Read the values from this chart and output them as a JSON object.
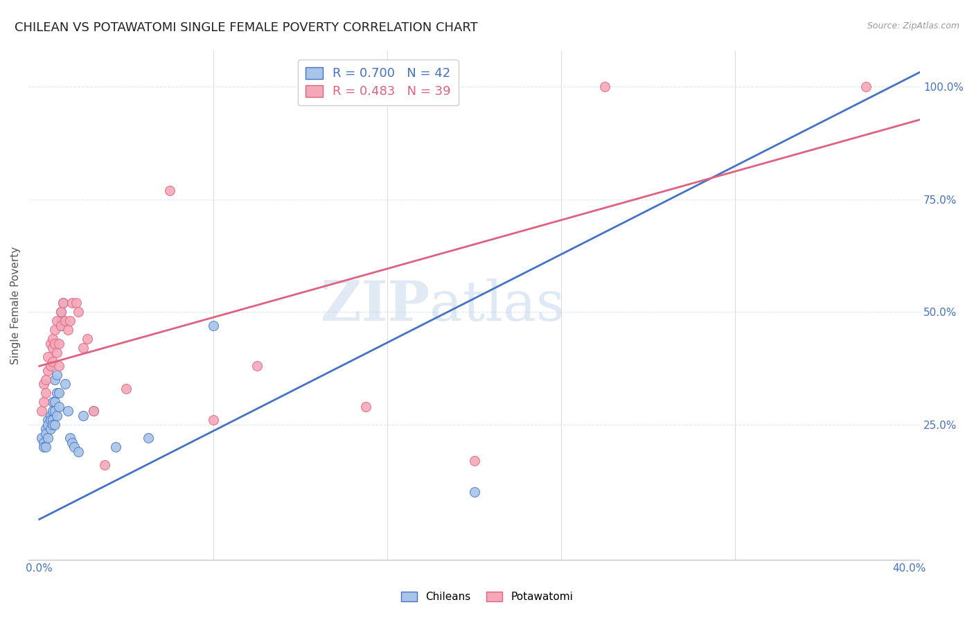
{
  "title": "CHILEAN VS POTAWATOMI SINGLE FEMALE POVERTY CORRELATION CHART",
  "source": "Source: ZipAtlas.com",
  "ylabel": "Single Female Poverty",
  "watermark": "ZIPatlas",
  "chilean_R": 0.7,
  "chilean_N": 42,
  "potawatomi_R": 0.483,
  "potawatomi_N": 39,
  "chilean_color": "#a8c4e8",
  "potawatomi_color": "#f5a8b8",
  "chilean_line_color": "#4472c4",
  "potawatomi_line_color": "#e06080",
  "xlim": [
    -0.005,
    0.405
  ],
  "ylim": [
    -0.05,
    1.08
  ],
  "x_ticks": [
    0.0,
    0.08,
    0.16,
    0.24,
    0.32,
    0.4
  ],
  "y_ticks_right": [
    0.25,
    0.5,
    0.75,
    1.0
  ],
  "y_tick_labels_right": [
    "25.0%",
    "50.0%",
    "75.0%",
    "100.0%"
  ],
  "chilean_line": [
    0.0,
    0.04,
    0.4,
    1.02
  ],
  "potawatomi_line": [
    0.0,
    0.38,
    0.4,
    0.92
  ],
  "chilean_x": [
    0.001,
    0.002,
    0.002,
    0.003,
    0.003,
    0.003,
    0.004,
    0.004,
    0.004,
    0.005,
    0.005,
    0.005,
    0.006,
    0.006,
    0.006,
    0.006,
    0.007,
    0.007,
    0.007,
    0.007,
    0.008,
    0.008,
    0.008,
    0.009,
    0.009,
    0.01,
    0.01,
    0.01,
    0.011,
    0.011,
    0.012,
    0.013,
    0.014,
    0.015,
    0.016,
    0.018,
    0.02,
    0.025,
    0.035,
    0.05,
    0.08,
    0.2
  ],
  "chilean_y": [
    0.22,
    0.21,
    0.2,
    0.24,
    0.23,
    0.2,
    0.26,
    0.25,
    0.22,
    0.27,
    0.26,
    0.24,
    0.3,
    0.28,
    0.26,
    0.25,
    0.35,
    0.3,
    0.28,
    0.25,
    0.36,
    0.32,
    0.27,
    0.32,
    0.29,
    0.5,
    0.48,
    0.47,
    0.52,
    0.48,
    0.34,
    0.28,
    0.22,
    0.21,
    0.2,
    0.19,
    0.27,
    0.28,
    0.2,
    0.22,
    0.47,
    0.1
  ],
  "potawatomi_x": [
    0.001,
    0.002,
    0.002,
    0.003,
    0.003,
    0.004,
    0.004,
    0.005,
    0.005,
    0.006,
    0.006,
    0.006,
    0.007,
    0.007,
    0.008,
    0.008,
    0.009,
    0.009,
    0.01,
    0.01,
    0.011,
    0.012,
    0.013,
    0.014,
    0.015,
    0.017,
    0.018,
    0.02,
    0.022,
    0.025,
    0.03,
    0.04,
    0.06,
    0.08,
    0.1,
    0.15,
    0.2,
    0.26,
    0.38
  ],
  "potawatomi_y": [
    0.28,
    0.34,
    0.3,
    0.35,
    0.32,
    0.4,
    0.37,
    0.43,
    0.38,
    0.44,
    0.42,
    0.39,
    0.46,
    0.43,
    0.48,
    0.41,
    0.43,
    0.38,
    0.5,
    0.47,
    0.52,
    0.48,
    0.46,
    0.48,
    0.52,
    0.52,
    0.5,
    0.42,
    0.44,
    0.28,
    0.16,
    0.33,
    0.77,
    0.26,
    0.38,
    0.29,
    0.17,
    1.0,
    1.0
  ],
  "background_color": "#ffffff",
  "grid_color": "#dde8f0",
  "title_fontsize": 13,
  "label_fontsize": 11,
  "tick_fontsize": 11,
  "legend_fontsize": 13
}
